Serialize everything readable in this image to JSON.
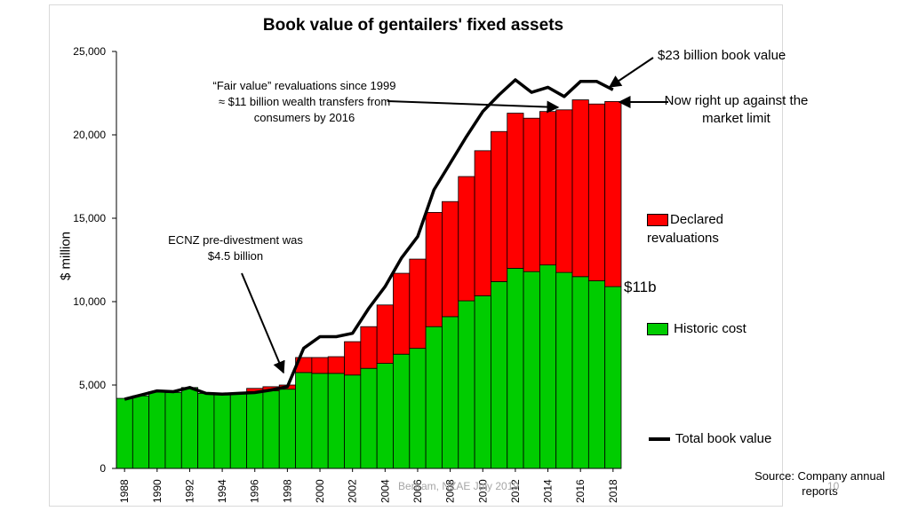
{
  "chart_data": {
    "type": "bar",
    "stacked": true,
    "title": "Book value of gentailers' fixed assets",
    "ylabel": "$ million",
    "xlabel": "",
    "ylim": [
      0,
      25000
    ],
    "yticks": [
      "0",
      "5,000",
      "10,000",
      "15,000",
      "20,000",
      "25,000"
    ],
    "xtick_labels": [
      "1988",
      "1990",
      "1992",
      "1994",
      "1996",
      "1998",
      "2000",
      "2002",
      "2004",
      "2006",
      "2008",
      "2010",
      "2012",
      "2014",
      "2016",
      "2018"
    ],
    "categories": [
      1988,
      1989,
      1990,
      1991,
      1992,
      1993,
      1994,
      1995,
      1996,
      1997,
      1998,
      1999,
      2000,
      2001,
      2002,
      2003,
      2004,
      2005,
      2006,
      2007,
      2008,
      2009,
      2010,
      2011,
      2012,
      2013,
      2014,
      2015,
      2016,
      2017,
      2018
    ],
    "series": [
      {
        "name": "Historic cost",
        "color": "#00cc00",
        "values": [
          4200,
          4350,
          4600,
          4550,
          4850,
          4500,
          4450,
          4500,
          4600,
          4650,
          4750,
          5750,
          5700,
          5700,
          5600,
          6000,
          6300,
          6850,
          7200,
          8500,
          9100,
          10050,
          10350,
          11200,
          12000,
          11800,
          12200,
          11750,
          11500,
          11250,
          10900
        ]
      },
      {
        "name": "Declared revaluations",
        "color": "#ff0000",
        "values": [
          0,
          0,
          0,
          0,
          0,
          0,
          0,
          0,
          200,
          250,
          250,
          900,
          950,
          1000,
          2000,
          2500,
          3500,
          4850,
          5350,
          6850,
          6900,
          7450,
          8700,
          9000,
          9300,
          9200,
          9200,
          9750,
          10600,
          10600,
          11100
        ]
      },
      {
        "name": "Total book value",
        "type": "line",
        "color": "#000000",
        "values": [
          4150,
          4400,
          4650,
          4600,
          4850,
          4500,
          4450,
          4500,
          4550,
          4700,
          4900,
          7200,
          7900,
          7900,
          8100,
          9600,
          10900,
          12600,
          13900,
          16700,
          18300,
          19900,
          21400,
          22400,
          23300,
          22550,
          22850,
          22300,
          23200,
          23200,
          22700
        ]
      }
    ],
    "grid": false,
    "legend_position": "right"
  },
  "annotations": {
    "book_value_23": "$23 billion book value",
    "market_limit": "Now right up against the market limit",
    "fair_value": "“Fair value” revaluations since 1999 ≈ $11 billion wealth transfers from consumers by 2016",
    "ecnz": "ECNZ pre-divestment was $4.5  billion",
    "label_11b": "$11b"
  },
  "source": "Source: Company annual reports",
  "footer": "Bertram, NZAE July 2019",
  "page_number": "10"
}
